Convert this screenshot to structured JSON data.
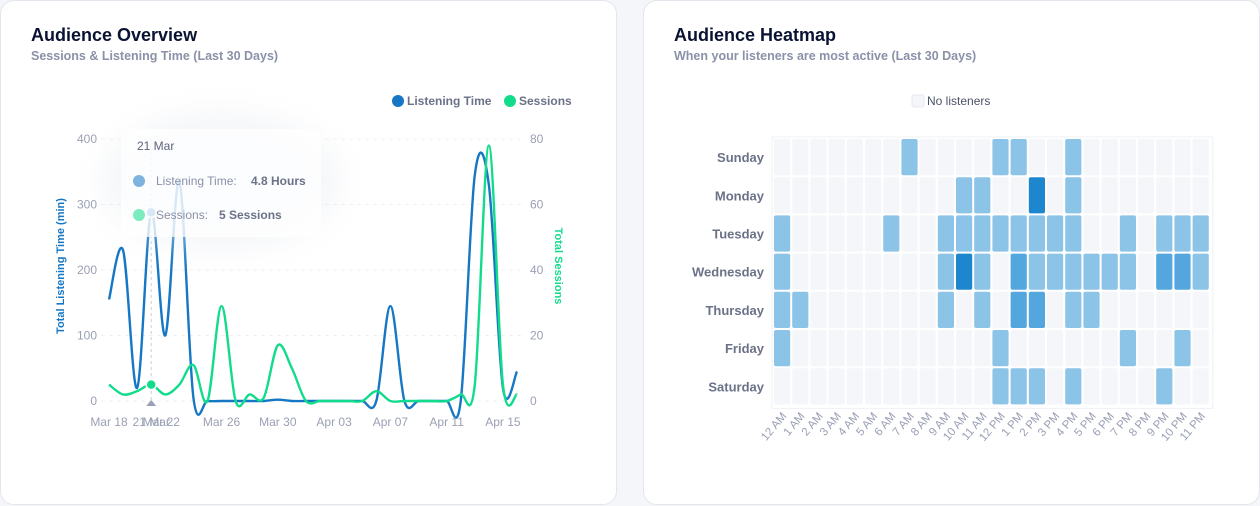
{
  "overview": {
    "title": "Audience Overview",
    "subtitle": "Sessions & Listening Time (Last 30 Days)"
  },
  "heatmap_card": {
    "title": "Audience Heatmap",
    "subtitle": "When your listeners are most active (Last 30 Days)",
    "legend_label": "No listeners"
  },
  "colors": {
    "listening": "#1677c4",
    "sessions": "#12dc8c",
    "heat_empty": "#f4f6f9"
  },
  "chart_data": [
    {
      "type": "line",
      "title": "Audience Overview",
      "subtitle": "Sessions & Listening Time (Last 30 Days)",
      "ylabel_left": "Total Listening Time (min)",
      "ylabel_right": "Total Sessions",
      "ylim_left": [
        0,
        400
      ],
      "ylim_right": [
        0,
        80
      ],
      "yticks_left": [
        0,
        100,
        200,
        300,
        400
      ],
      "yticks_right": [
        0,
        20,
        40,
        60,
        80
      ],
      "x": [
        "Mar 18",
        "Mar 19",
        "Mar 20",
        "Mar 21",
        "Mar 22",
        "Mar 23",
        "Mar 24",
        "Mar 25",
        "Mar 26",
        "Mar 27",
        "Mar 28",
        "Mar 29",
        "Mar 30",
        "Mar 31",
        "Apr 01",
        "Apr 02",
        "Apr 03",
        "Apr 04",
        "Apr 05",
        "Apr 06",
        "Apr 07",
        "Apr 08",
        "Apr 09",
        "Apr 10",
        "Apr 11",
        "Apr 12",
        "Apr 13",
        "Apr 14",
        "Apr 15",
        "Apr 16"
      ],
      "x_tick_labels": [
        "Mar 18",
        "21 Mar",
        "Mar 22",
        "Mar 26",
        "Mar 30",
        "Apr 03",
        "Apr 07",
        "Apr 11",
        "Apr 15"
      ],
      "legend_position": "top-right",
      "series": [
        {
          "name": "Listening Time",
          "axis": "left",
          "color": "#1677c4",
          "values": [
            155,
            230,
            20,
            288,
            100,
            335,
            5,
            0,
            0,
            0,
            0,
            0,
            2,
            0,
            0,
            0,
            0,
            0,
            0,
            0,
            145,
            0,
            0,
            0,
            0,
            0,
            345,
            330,
            20,
            45
          ]
        },
        {
          "name": "Sessions",
          "axis": "right",
          "color": "#12dc8c",
          "values": [
            5,
            2,
            3,
            5,
            2,
            5,
            11,
            0,
            29,
            0,
            2,
            1,
            17,
            10,
            0,
            0,
            0,
            0,
            0,
            3,
            0,
            0,
            0,
            0,
            0,
            2,
            5,
            78,
            5,
            2
          ]
        }
      ],
      "tooltip": {
        "date": "21 Mar",
        "rows": [
          {
            "label": "Listening Time:",
            "value": "4.8 Hours",
            "color": "#1677c4"
          },
          {
            "label": "Sessions:",
            "value": "5 Sessions",
            "color": "#12dc8c"
          }
        ]
      }
    },
    {
      "type": "heatmap",
      "title": "Audience Heatmap",
      "subtitle": "When your listeners are most active (Last 30 Days)",
      "rows": [
        "Sunday",
        "Monday",
        "Tuesday",
        "Wednesday",
        "Thursday",
        "Friday",
        "Saturday"
      ],
      "columns": [
        "12 AM",
        "1 AM",
        "2 AM",
        "3 AM",
        "4 AM",
        "5 AM",
        "6 AM",
        "7 AM",
        "8 AM",
        "9 AM",
        "10 AM",
        "11 AM",
        "12 PM",
        "1 PM",
        "2 PM",
        "3 PM",
        "4 PM",
        "5 PM",
        "6 PM",
        "7 PM",
        "8 PM",
        "9 PM",
        "10 PM",
        "11 PM"
      ],
      "legend": "No listeners",
      "values": [
        [
          0,
          0,
          0,
          0,
          0,
          0,
          0,
          1,
          0,
          0,
          0,
          0,
          1,
          1,
          0,
          0,
          1,
          0,
          0,
          0,
          0,
          0,
          0,
          0
        ],
        [
          0,
          0,
          0,
          0,
          0,
          0,
          0,
          0,
          0,
          0,
          1,
          1,
          0,
          0,
          3,
          0,
          1,
          0,
          0,
          0,
          0,
          0,
          0,
          0
        ],
        [
          1,
          0,
          0,
          0,
          0,
          0,
          1,
          0,
          0,
          1,
          1,
          1,
          1,
          1,
          1,
          1,
          1,
          0,
          0,
          1,
          0,
          1,
          1,
          1
        ],
        [
          1,
          0,
          0,
          0,
          0,
          0,
          0,
          0,
          0,
          1,
          3,
          1,
          0,
          2,
          1,
          1,
          1,
          1,
          1,
          1,
          0,
          2,
          2,
          1
        ],
        [
          1,
          1,
          0,
          0,
          0,
          0,
          0,
          0,
          0,
          1,
          0,
          1,
          0,
          2,
          2,
          0,
          1,
          1,
          0,
          0,
          0,
          0,
          0,
          0
        ],
        [
          1,
          0,
          0,
          0,
          0,
          0,
          0,
          0,
          0,
          0,
          0,
          0,
          1,
          0,
          0,
          0,
          0,
          0,
          0,
          1,
          0,
          0,
          1,
          0
        ],
        [
          0,
          0,
          0,
          0,
          0,
          0,
          0,
          0,
          0,
          0,
          0,
          0,
          1,
          1,
          1,
          0,
          1,
          0,
          0,
          0,
          0,
          1,
          0,
          0
        ]
      ]
    }
  ]
}
